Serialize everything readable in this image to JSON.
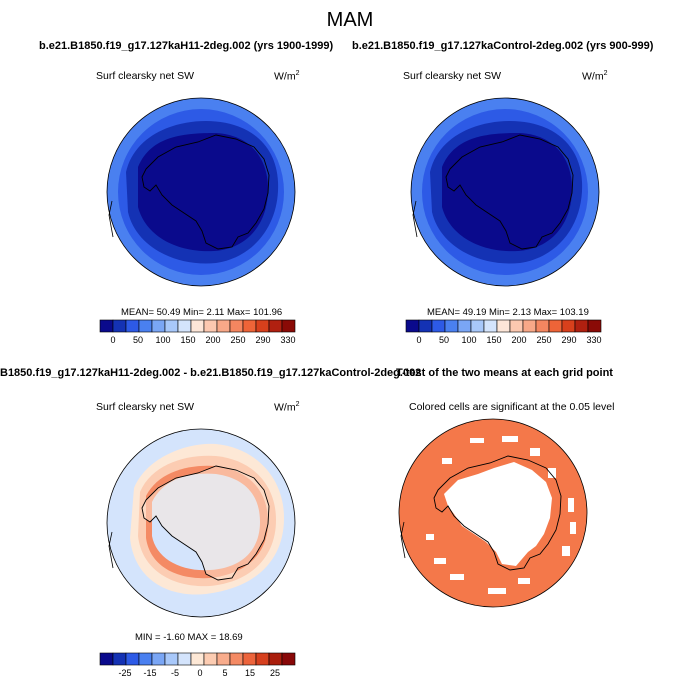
{
  "title": "MAM",
  "panels": [
    {
      "id": "p1",
      "case_title": "b.e21.B1850.f19_g17.127kaH11-2deg.002 (yrs 1900-1999)",
      "left_label": "Surf clearsky net SW",
      "units": "W/m",
      "units_exp": "2",
      "stats": "MEAN=  50.49  Min=    2.11  Max= 101.96",
      "colorbar_ticks": [
        "0",
        "50",
        "100",
        "150",
        "200",
        "250",
        "290",
        "330"
      ]
    },
    {
      "id": "p2",
      "case_title": "b.e21.B1850.f19_g17.127kaControl-2deg.002 (yrs 900-999)",
      "left_label": "Surf clearsky net SW",
      "units": "W/m",
      "units_exp": "2",
      "stats": "MEAN=  49.19  Min=    2.13  Max= 103.19",
      "colorbar_ticks": [
        "0",
        "50",
        "100",
        "150",
        "200",
        "250",
        "290",
        "330"
      ]
    },
    {
      "id": "p3",
      "case_title": "B1850.f19_g17.127kaH11-2deg.002 - b.e21.B1850.f19_g17.127kaControl-2deg.002",
      "left_label": "Surf clearsky net SW",
      "units": "W/m",
      "units_exp": "2",
      "stats": "MIN =  -1.60  MAX =  18.69",
      "colorbar_ticks": [
        "-25",
        "-15",
        "-5",
        "0",
        "5",
        "15",
        "25"
      ]
    },
    {
      "id": "p4",
      "case_title": "T-test of the two means at each grid point",
      "left_label": "Colored cells are significant at the 0.05 level"
    }
  ],
  "colors": {
    "abs_scale": [
      "#0a0a8c",
      "#1432b4",
      "#2d5ae6",
      "#4a80f0",
      "#7aa6f5",
      "#a8c8fa",
      "#d4e4fc",
      "#fde6d8",
      "#fcc8b0",
      "#f8a888",
      "#f48660",
      "#ee6438",
      "#d8401c",
      "#b02010",
      "#8a0a06"
    ],
    "diff_scale": [
      "#0a0a8c",
      "#1432b4",
      "#2d5ae6",
      "#4a80f0",
      "#7aa6f5",
      "#a8c8fa",
      "#d4e4fc",
      "#fde8d6",
      "#fcccb2",
      "#f8ac8c",
      "#f48a64",
      "#ec643c",
      "#d6401e",
      "#aa1e0c",
      "#880808"
    ],
    "ttest_color": "#f4784a"
  }
}
